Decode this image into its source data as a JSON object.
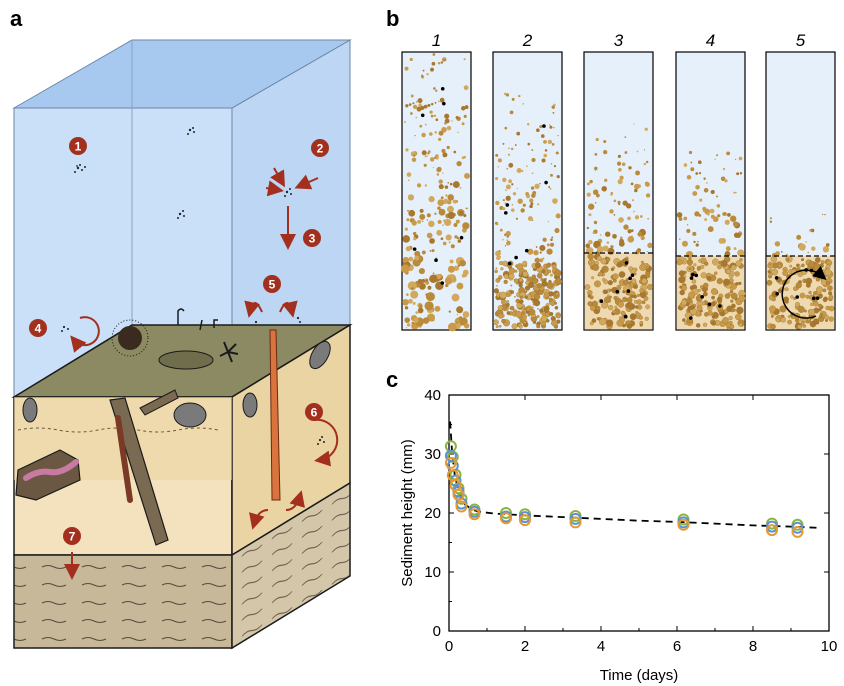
{
  "panel_labels": {
    "a": "a",
    "b": "b",
    "c": "c"
  },
  "markers": [
    "1",
    "2",
    "3",
    "4",
    "5",
    "6",
    "7"
  ],
  "columns": [
    "1",
    "2",
    "3",
    "4",
    "5"
  ],
  "colors": {
    "water": "#c9e0f8",
    "water_top": "#a7c9f0",
    "sediment_light": "#f5e6c6",
    "sediment_mid": "#ecd7a8",
    "sediment_surface": "#8c8a63",
    "bedrock": "#c7b89a",
    "marker": "#a3301e",
    "grain": "#b98a3a",
    "series_blue": "#5b8fd6",
    "series_green": "#8ab43e",
    "series_orange": "#e59a2e"
  },
  "chart_data": {
    "type": "scatter",
    "xlabel": "Time (days)",
    "ylabel": "Sediment height (mm)",
    "xlim": [
      0,
      10
    ],
    "ylim": [
      0,
      40
    ],
    "xticks": [
      0,
      2,
      4,
      6,
      8,
      10
    ],
    "yticks": [
      0,
      10,
      20,
      30,
      40
    ],
    "series": [
      {
        "color": "green",
        "x": [
          0.05,
          0.1,
          0.17,
          0.25,
          0.33,
          0.67,
          1.5,
          2.0,
          3.33,
          6.17,
          8.5,
          9.17
        ],
        "y": [
          31.3,
          29.5,
          26.5,
          24.2,
          22.4,
          20.6,
          20.0,
          19.8,
          19.5,
          18.9,
          18.2,
          18.0
        ]
      },
      {
        "color": "blue",
        "x": [
          0.05,
          0.1,
          0.17,
          0.25,
          0.33,
          0.67,
          1.5,
          2.0,
          3.33,
          6.17,
          8.5,
          9.17
        ],
        "y": [
          29.7,
          28.0,
          25.5,
          23.6,
          21.6,
          20.2,
          19.4,
          19.3,
          19.0,
          18.4,
          17.7,
          17.5
        ]
      },
      {
        "color": "orange",
        "x": [
          0.05,
          0.1,
          0.17,
          0.25,
          0.33,
          0.67,
          1.5,
          2.0,
          3.33,
          6.17,
          8.5,
          9.17
        ],
        "y": [
          28.5,
          26.4,
          24.7,
          23.1,
          21.1,
          19.8,
          19.1,
          18.8,
          18.4,
          18.0,
          17.1,
          16.8
        ]
      }
    ],
    "fit_line": {
      "style": "dashed",
      "x": [
        0.03,
        0.08,
        0.15,
        0.25,
        0.4,
        0.6,
        0.8,
        1.2,
        2,
        3,
        4,
        5,
        6,
        7,
        8,
        9,
        9.7
      ],
      "y": [
        35.5,
        30.5,
        26.5,
        23.6,
        21.6,
        20.6,
        20.2,
        19.9,
        19.6,
        19.3,
        19.0,
        18.7,
        18.5,
        18.2,
        17.9,
        17.7,
        17.5
      ]
    },
    "grid": false
  }
}
